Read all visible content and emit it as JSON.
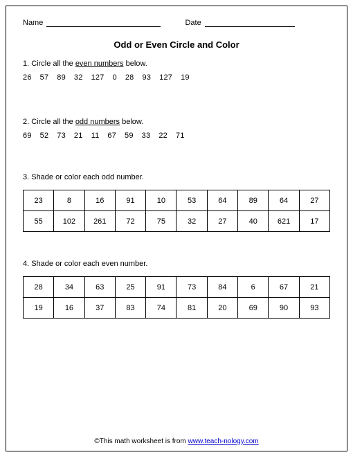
{
  "header": {
    "name_label": "Name",
    "date_label": "Date"
  },
  "title": "Odd or Even Circle and Color",
  "q1": {
    "prefix": "1. Circle all the ",
    "underline": "even numbers",
    "suffix": " below.",
    "numbers": [
      "26",
      "57",
      "89",
      "32",
      "127",
      "0",
      "28",
      "93",
      "127",
      "19"
    ]
  },
  "q2": {
    "prefix": "2. Circle all the ",
    "underline": "odd numbers",
    "suffix": " below.",
    "numbers": [
      "69",
      "52",
      "73",
      "21",
      "11",
      "67",
      "59",
      "33",
      "22",
      "71"
    ]
  },
  "q3": {
    "text": "3. Shade or color each odd number.",
    "rows": [
      [
        "23",
        "8",
        "16",
        "91",
        "10",
        "53",
        "64",
        "89",
        "64",
        "27"
      ],
      [
        "55",
        "102",
        "261",
        "72",
        "75",
        "32",
        "27",
        "40",
        "621",
        "17"
      ]
    ]
  },
  "q4": {
    "text": "4. Shade or color each even number.",
    "rows": [
      [
        "28",
        "34",
        "63",
        "25",
        "91",
        "73",
        "84",
        "6",
        "67",
        "21"
      ],
      [
        "19",
        "16",
        "37",
        "83",
        "74",
        "81",
        "20",
        "69",
        "90",
        "93"
      ]
    ]
  },
  "footer": {
    "prefix": "©This math worksheet is from ",
    "link": "www.teach-nology.com"
  }
}
